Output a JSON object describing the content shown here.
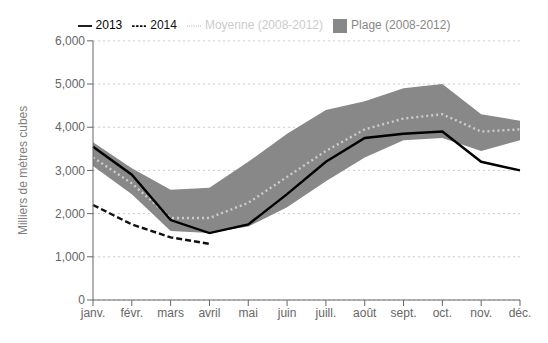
{
  "chart_data": {
    "type": "line",
    "categories": [
      "janv.",
      "févr.",
      "mars",
      "avril",
      "mai",
      "juin",
      "juill.",
      "août",
      "sept.",
      "oct.",
      "nov.",
      "déc."
    ],
    "ylabel": "Milliers de mètres cubes",
    "ylim": [
      0,
      6000
    ],
    "yticks": [
      0,
      {
        "value": 1000,
        "label": "1,000"
      },
      {
        "value": 2000,
        "label": "2,000"
      },
      {
        "value": 3000,
        "label": "3,000"
      },
      {
        "value": 4000,
        "label": "4,000"
      },
      {
        "value": 5000,
        "label": "5,000"
      },
      {
        "value": 6000,
        "label": "6,000"
      }
    ],
    "grid": true,
    "legend": "top",
    "series": [
      {
        "name": "Plage (2008-2012)",
        "type": "range",
        "color": "#888888",
        "low": [
          3100,
          2450,
          1600,
          1550,
          1700,
          2150,
          2750,
          3300,
          3700,
          3750,
          3450,
          3700
        ],
        "high": [
          3650,
          3050,
          2550,
          2600,
          3200,
          3850,
          4400,
          4600,
          4900,
          5000,
          4300,
          4150
        ]
      },
      {
        "name": "Moyenne (2008-2012)",
        "type": "line",
        "color": "#cccccc",
        "line_style": "dotted",
        "values": [
          3300,
          2700,
          1900,
          1900,
          2250,
          2850,
          3450,
          3950,
          4200,
          4300,
          3900,
          3950
        ]
      },
      {
        "name": "2013",
        "type": "line",
        "color": "#000000",
        "line_style": "solid",
        "values": [
          3550,
          2900,
          1850,
          1550,
          1750,
          2450,
          3200,
          3750,
          3850,
          3900,
          3200,
          3000
        ]
      },
      {
        "name": "2014",
        "type": "line",
        "color": "#111111",
        "line_style": "dashed",
        "values": [
          2200,
          1750,
          1450,
          1300,
          null,
          null,
          null,
          null,
          null,
          null,
          null,
          null
        ]
      }
    ]
  }
}
